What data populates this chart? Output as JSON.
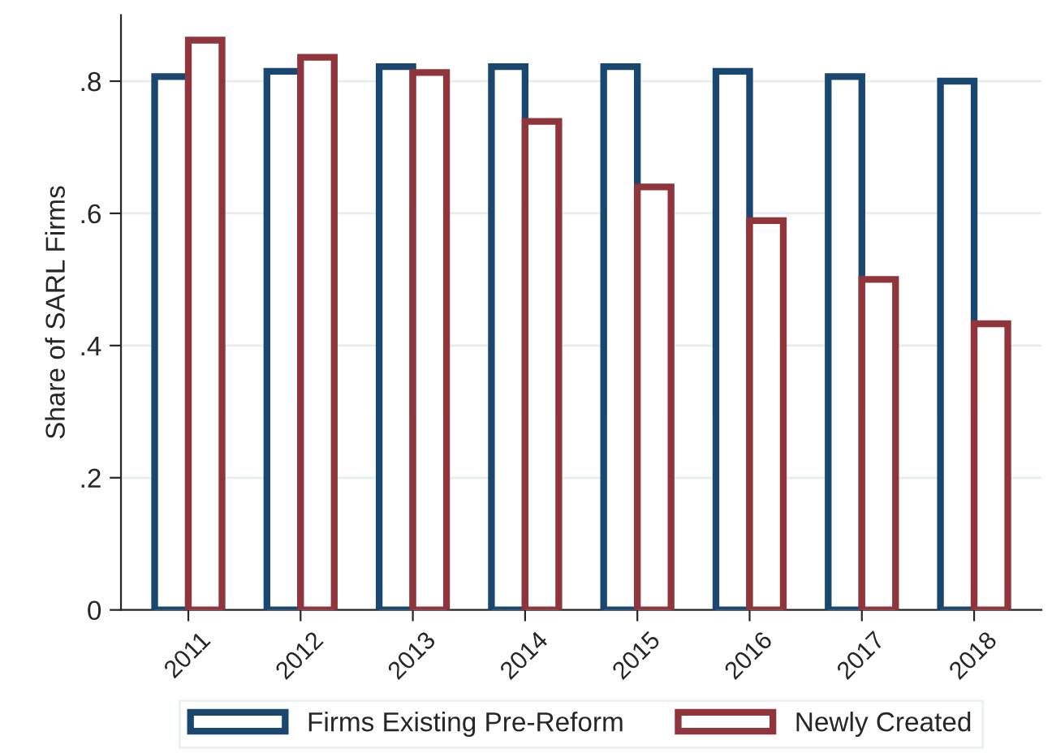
{
  "chart_data": {
    "type": "bar",
    "ylabel": "Share of SARL Firms",
    "categories": [
      "2011",
      "2012",
      "2013",
      "2014",
      "2015",
      "2016",
      "2017",
      "2018"
    ],
    "series": [
      {
        "name": "Firms Existing Pre-Reform",
        "color": "#1a476f",
        "values": [
          0.807,
          0.815,
          0.822,
          0.822,
          0.822,
          0.815,
          0.807,
          0.8
        ]
      },
      {
        "name": "Newly Created",
        "color": "#90353b",
        "values": [
          0.862,
          0.836,
          0.813,
          0.739,
          0.64,
          0.589,
          0.5,
          0.433
        ]
      }
    ],
    "ylim": [
      0,
      0.9
    ],
    "yticks": [
      0,
      {
        "value": 0.2,
        "label": ".2"
      },
      {
        "value": 0.4,
        "label": ".4"
      },
      {
        "value": 0.6,
        "label": ".6"
      },
      {
        "value": 0.8,
        "label": ".8"
      }
    ],
    "grid": "y",
    "legend": "bottom"
  }
}
